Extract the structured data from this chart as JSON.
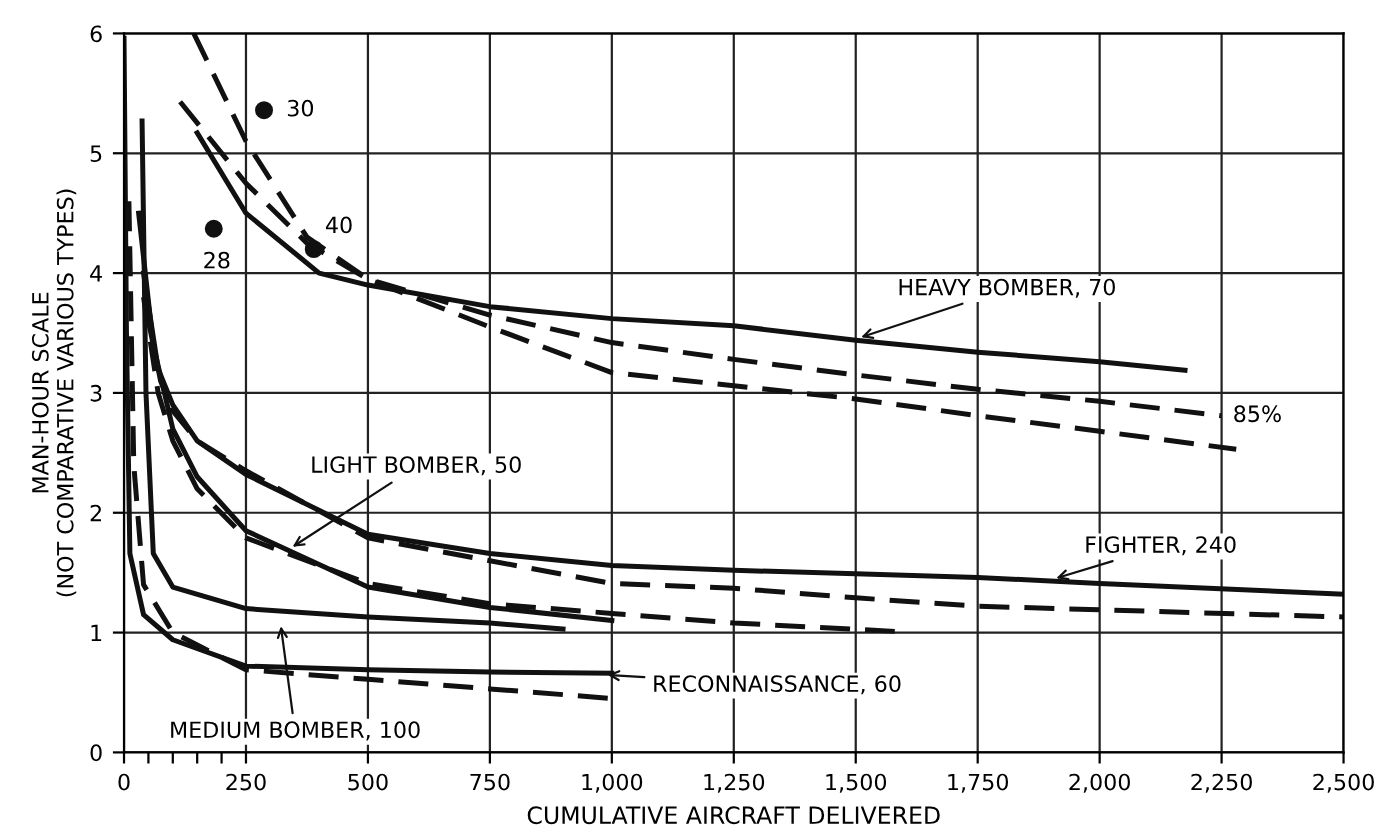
{
  "chart_data": {
    "type": "line",
    "xlabel": "CUMULATIVE AIRCRAFT DELIVERED",
    "ylabel": "MAN-HOUR SCALE\n(NOT COMPARATIVE VARIOUS TYPES)",
    "xlim": [
      0,
      2500
    ],
    "ylim": [
      0,
      6
    ],
    "xticks": [
      0,
      {
        "value": 50,
        "label": null
      },
      {
        "value": 100,
        "label": null
      },
      {
        "value": 150,
        "label": null
      },
      {
        "value": 200,
        "label": null
      },
      250,
      500,
      750,
      {
        "value": 1000,
        "label": "1,000"
      },
      {
        "value": 1250,
        "label": "1,250"
      },
      {
        "value": 1500,
        "label": "1,500"
      },
      {
        "value": 1750,
        "label": "1,750"
      },
      {
        "value": 2000,
        "label": "2,000"
      },
      {
        "value": 2250,
        "label": "2,250"
      },
      {
        "value": 2500,
        "label": "2,500"
      }
    ],
    "yticks": [
      0,
      1,
      2,
      3,
      4,
      5,
      6
    ],
    "grid": true,
    "legend": false,
    "marker": "none",
    "series": [
      {
        "color": "#111111",
        "line_style": "solid",
        "x": [
          150,
          250,
          400,
          500,
          750,
          1000,
          1250,
          1500,
          1750,
          2000,
          2175
        ],
        "values": [
          5.17,
          4.5,
          4.0,
          3.9,
          3.72,
          3.62,
          3.56,
          3.44,
          3.34,
          3.26,
          3.19
        ]
      },
      {
        "color": "#111111",
        "line_style": "dashed",
        "x": [
          115,
          250,
          375,
          500,
          750,
          1000,
          1250,
          1500,
          1750,
          2000,
          2250
        ],
        "values": [
          5.43,
          4.75,
          4.25,
          3.95,
          3.65,
          3.42,
          3.28,
          3.15,
          3.03,
          2.93,
          2.81
        ]
      },
      {
        "color": "#111111",
        "line_style": "dashed",
        "x": [
          143,
          250,
          375,
          500,
          750,
          1000,
          1250,
          1500,
          1750,
          2000,
          2280
        ],
        "values": [
          6.0,
          5.1,
          4.3,
          3.95,
          3.55,
          3.17,
          3.06,
          2.95,
          2.81,
          2.68,
          2.53
        ]
      },
      {
        "color": "#111111",
        "line_style": "solid",
        "x": [
          40,
          70,
          100,
          150,
          250,
          500,
          750,
          1000,
          1250,
          1500,
          1750,
          2000,
          2500
        ],
        "values": [
          4.0,
          3.2,
          2.9,
          2.6,
          2.32,
          1.82,
          1.66,
          1.56,
          1.52,
          1.49,
          1.46,
          1.41,
          1.32
        ]
      },
      {
        "color": "#111111",
        "line_style": "dashed",
        "x": [
          50,
          75,
          100,
          150,
          250,
          500,
          750,
          1000,
          1250,
          1500,
          1750,
          2000,
          2500
        ],
        "values": [
          3.6,
          3.1,
          2.85,
          2.6,
          2.35,
          1.79,
          1.6,
          1.41,
          1.37,
          1.29,
          1.22,
          1.19,
          1.13
        ]
      },
      {
        "color": "#111111",
        "line_style": "solid",
        "x": [
          30,
          60,
          100,
          150,
          250,
          500,
          750,
          1000
        ],
        "values": [
          4.5,
          3.4,
          2.7,
          2.3,
          1.85,
          1.38,
          1.21,
          1.1
        ]
      },
      {
        "color": "#111111",
        "line_style": "dashed",
        "x": [
          40,
          70,
          100,
          150,
          250,
          500,
          750,
          1000,
          1250,
          1580
        ],
        "values": [
          3.8,
          3.0,
          2.6,
          2.2,
          1.79,
          1.41,
          1.24,
          1.16,
          1.08,
          1.01
        ]
      },
      {
        "color": "#111111",
        "line_style": "solid",
        "x": [
          37,
          45,
          60,
          100,
          250,
          500,
          750,
          900
        ],
        "values": [
          5.27,
          3.0,
          1.66,
          1.38,
          1.2,
          1.13,
          1.08,
          1.03
        ]
      },
      {
        "color": "#111111",
        "line_style": "solid",
        "x": [
          0,
          5,
          12,
          40,
          100,
          250,
          500,
          750,
          1000
        ],
        "values": [
          5.96,
          3.5,
          1.66,
          1.15,
          0.94,
          0.72,
          0.69,
          0.67,
          0.66
        ]
      },
      {
        "color": "#111111",
        "line_style": "dashed",
        "x": [
          10,
          20,
          40,
          100,
          250,
          500,
          750,
          1000
        ],
        "values": [
          4.6,
          2.4,
          1.4,
          1.0,
          0.69,
          0.61,
          0.53,
          0.45
        ]
      },
      {
        "type": "scatter",
        "color": "#111111",
        "marker": "circle",
        "x": [
          184,
          287,
          389
        ],
        "values": [
          4.37,
          5.36,
          4.2
        ]
      }
    ],
    "annotations": [
      {
        "text": "HEAVY BOMBER, 70",
        "x": 1500,
        "y": 3.45
      },
      {
        "text": "85%",
        "x": 2250,
        "y": 2.81
      },
      {
        "text": "FIGHTER, 240",
        "x": 1900,
        "y": 1.44
      },
      {
        "text": "LIGHT BOMBER, 50",
        "x": 336,
        "y": 1.69
      },
      {
        "text": "MEDIUM BOMBER, 100",
        "x": 320,
        "y": 1.1
      },
      {
        "text": "RECONNAISSANCE, 60",
        "x": 980,
        "y": 0.65
      },
      {
        "text": "28",
        "x": 184,
        "y": 4.37
      },
      {
        "text": "30",
        "x": 287,
        "y": 5.36
      },
      {
        "text": "40",
        "x": 389,
        "y": 4.2
      }
    ]
  }
}
